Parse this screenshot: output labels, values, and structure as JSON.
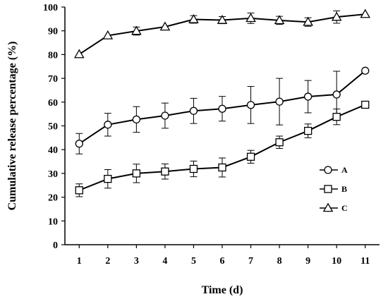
{
  "chart_data": {
    "type": "line",
    "title": "",
    "xlabel": "Time (d)",
    "ylabel": "Cumulative release percentage (%)",
    "x": [
      1,
      2,
      3,
      4,
      5,
      6,
      7,
      8,
      9,
      10,
      11
    ],
    "xlim": [
      0.5,
      11.5
    ],
    "ylim": [
      0,
      100
    ],
    "yticks": [
      0,
      10,
      20,
      30,
      40,
      50,
      60,
      70,
      80,
      90,
      100
    ],
    "xticks": [
      1,
      2,
      3,
      4,
      5,
      6,
      7,
      8,
      9,
      10,
      11
    ],
    "grid": false,
    "legend_position": "right",
    "series": [
      {
        "name": "A",
        "marker": "circle",
        "values": [
          42.5,
          50.5,
          52.7,
          54.3,
          56.3,
          57.2,
          58.8,
          60.2,
          62.3,
          63.2,
          73.2
        ],
        "errors": [
          4.3,
          4.8,
          5.4,
          5.3,
          5.3,
          5.2,
          7.8,
          9.8,
          6.8,
          9.8,
          null
        ]
      },
      {
        "name": "B",
        "marker": "square",
        "values": [
          22.9,
          27.7,
          30.0,
          30.8,
          31.9,
          32.5,
          37.0,
          43.1,
          47.9,
          53.8,
          58.9
        ],
        "errors": [
          2.7,
          3.9,
          3.9,
          3.2,
          3.3,
          4.0,
          2.7,
          2.6,
          2.9,
          3.3,
          null
        ]
      },
      {
        "name": "C",
        "marker": "triangle",
        "values": [
          80.1,
          88.0,
          89.9,
          91.7,
          94.8,
          94.5,
          95.3,
          94.4,
          93.7,
          95.8,
          97.0
        ],
        "errors": [
          null,
          null,
          1.7,
          null,
          1.6,
          1.5,
          2.2,
          1.7,
          1.8,
          2.6,
          null
        ]
      }
    ]
  }
}
